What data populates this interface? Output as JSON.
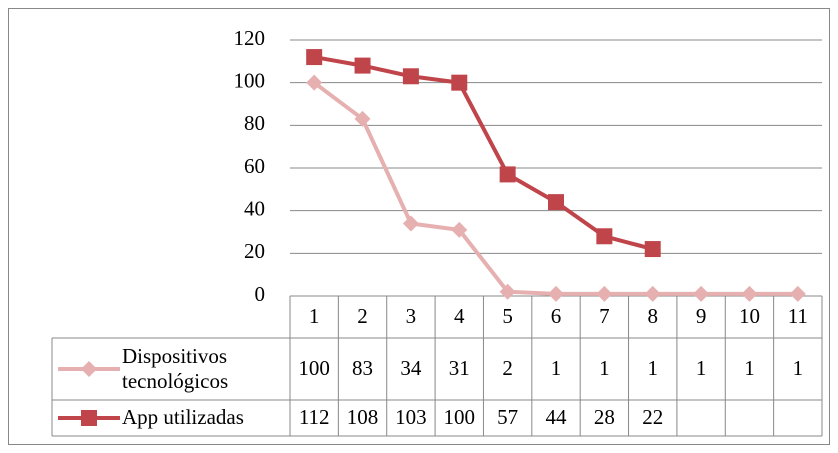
{
  "chart_data": {
    "type": "line",
    "categories": [
      "1",
      "2",
      "3",
      "4",
      "5",
      "6",
      "7",
      "8",
      "9",
      "10",
      "11"
    ],
    "series": [
      {
        "name": "Dispositivos tecnológicos",
        "color": "#e6b0b0",
        "marker": "diamond",
        "values": [
          100,
          83,
          34,
          31,
          2,
          1,
          1,
          1,
          1,
          1,
          1
        ]
      },
      {
        "name": "App utilizadas",
        "color": "#c0454a",
        "marker": "square",
        "values": [
          112,
          108,
          103,
          100,
          57,
          44,
          28,
          22,
          null,
          null,
          null
        ]
      }
    ],
    "ylim": [
      0,
      120
    ],
    "yticks": [
      0,
      20,
      40,
      60,
      80,
      100,
      120
    ],
    "grid": true,
    "data_table": true
  }
}
